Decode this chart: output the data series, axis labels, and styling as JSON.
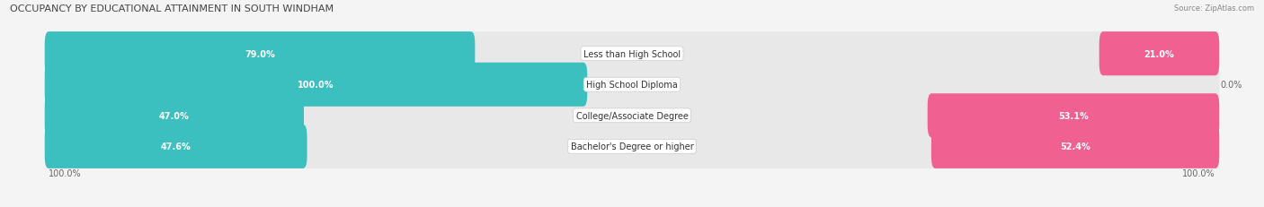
{
  "title": "OCCUPANCY BY EDUCATIONAL ATTAINMENT IN SOUTH WINDHAM",
  "source": "Source: ZipAtlas.com",
  "categories": [
    "Less than High School",
    "High School Diploma",
    "College/Associate Degree",
    "Bachelor's Degree or higher"
  ],
  "owner_values": [
    79.0,
    100.0,
    47.0,
    47.6
  ],
  "renter_values": [
    21.0,
    0.0,
    53.1,
    52.4
  ],
  "owner_color": "#3BBFBF",
  "renter_color": "#F06090",
  "bg_color": "#F4F4F4",
  "bar_bg_color": "#E8E8E8",
  "figsize": [
    14.06,
    2.32
  ],
  "dpi": 100,
  "owner_label_color_in": "#FFFFFF",
  "owner_label_color_out": "#666666",
  "renter_label_color_in": "#FFFFFF",
  "renter_label_color_out": "#666666"
}
